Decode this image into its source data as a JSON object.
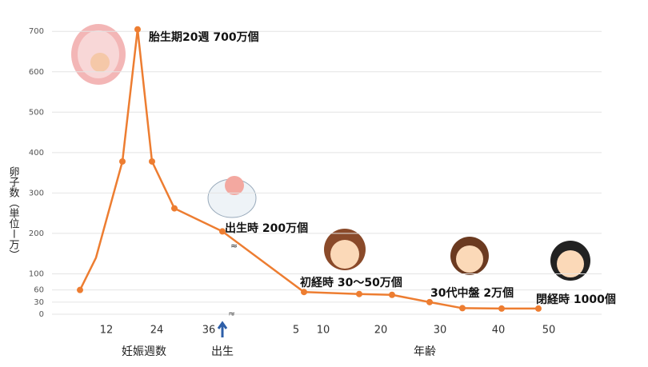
{
  "chart_data": {
    "type": "line",
    "y_label": "卵子数（単位ー万）",
    "values": [
      60,
      140,
      378,
      705,
      378,
      262,
      205,
      55,
      50,
      48,
      30,
      15,
      14,
      14
    ],
    "color": "#ed7d31",
    "ylim": [
      0,
      740
    ],
    "yticks": [
      0,
      30,
      60,
      100,
      200,
      300,
      400,
      500,
      600,
      700
    ],
    "grid": true,
    "x_tick_labels": [
      "12",
      "24",
      "36",
      "5",
      "10",
      "20",
      "30",
      "40",
      "50"
    ],
    "x_group_labels": [
      "妊娠週数",
      "出生",
      "年齢"
    ],
    "annotations": [
      "胎生期20週 700万個",
      "出生時 200万個",
      "初経時 30〜50万個",
      "30代中盤 2万個",
      "閉経時 1000個"
    ]
  }
}
